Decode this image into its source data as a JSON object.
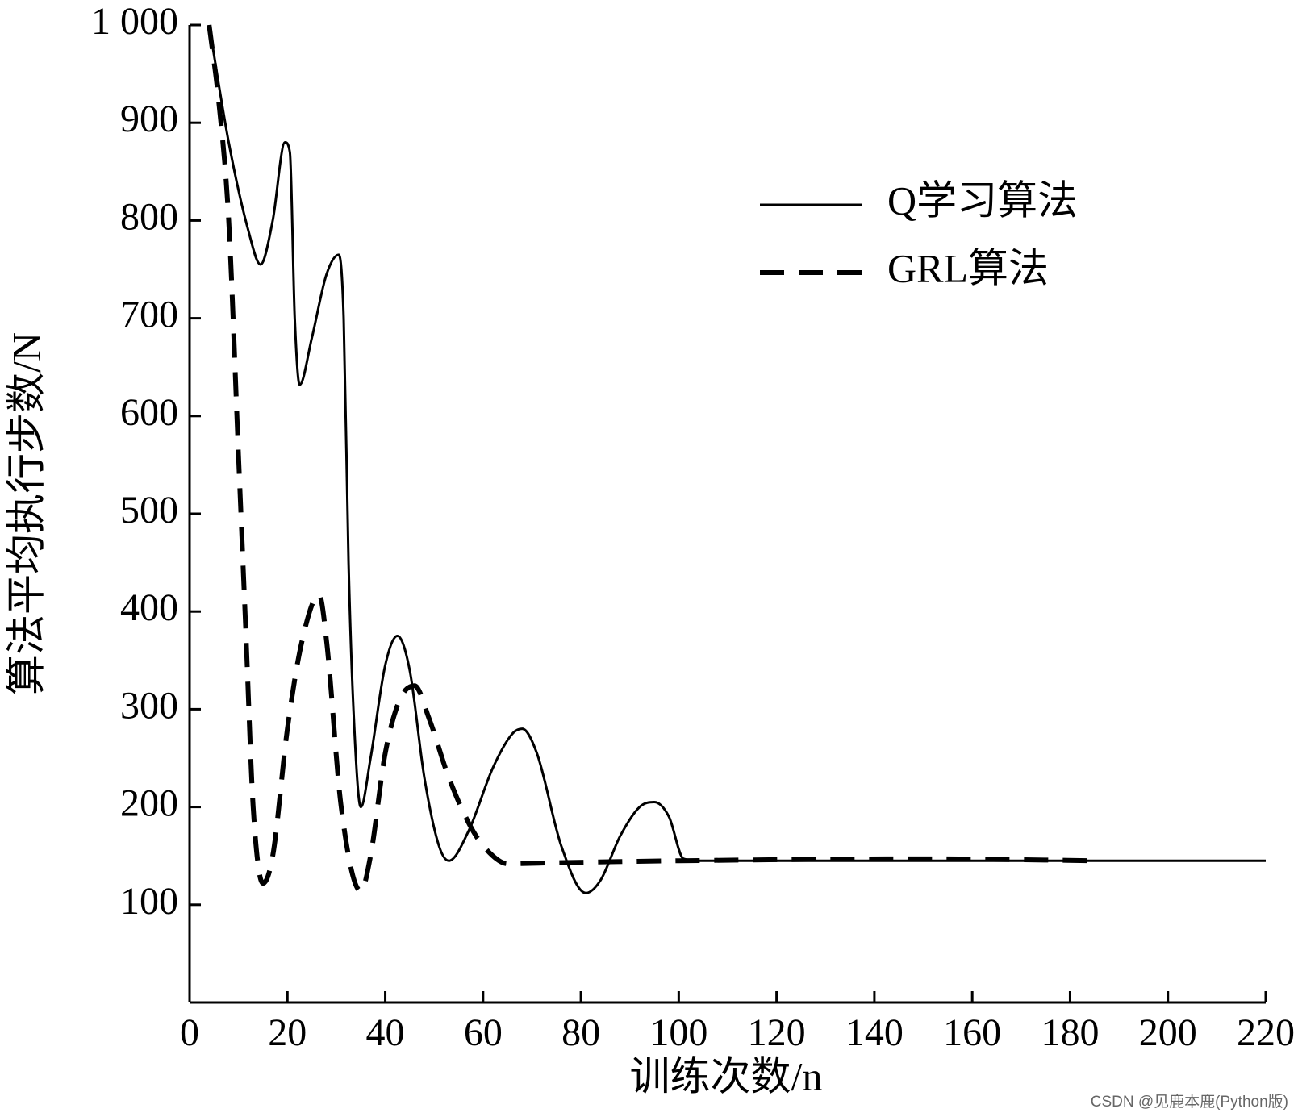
{
  "chart_data": {
    "type": "line",
    "x_label": "训练次数/n",
    "y_label": "算法平均执行步数/N",
    "watermark": "CSDN @见鹿本鹿(Python版)",
    "xlim": [
      0,
      220
    ],
    "xticks": [
      0,
      20,
      40,
      60,
      80,
      100,
      120,
      140,
      160,
      180,
      200,
      220
    ],
    "ylim": [
      0,
      1000
    ],
    "yticks": [
      100,
      200,
      300,
      400,
      500,
      600,
      700,
      800,
      900,
      {
        "value": 1000,
        "label": "1 000"
      }
    ],
    "legend": "upper right",
    "series": [
      {
        "name": "Q学习算法",
        "color": "#000000",
        "style": "solid",
        "x": [
          4,
          8,
          12,
          14.5,
          17,
          19.5,
          20.5,
          21.5,
          22.5,
          25,
          28,
          30.5,
          31.5,
          32.5,
          33.5,
          35,
          37,
          40,
          42.5,
          45,
          48,
          51,
          53,
          57,
          62,
          66,
          68,
          71,
          76,
          81,
          84,
          88,
          92,
          95,
          98,
          101,
          105,
          220
        ],
        "values": [
          1000,
          880,
          790,
          755,
          800,
          880,
          870,
          700,
          632,
          680,
          745,
          765,
          700,
          450,
          300,
          200,
          250,
          345,
          375,
          340,
          230,
          160,
          145,
          175,
          240,
          275,
          280,
          255,
          160,
          112,
          125,
          170,
          200,
          205,
          190,
          147,
          145,
          145
        ]
      },
      {
        "name": "GRL算法",
        "color": "#000000",
        "style": "dashed",
        "x": [
          4,
          6,
          8,
          10,
          11.5,
          13,
          15,
          17,
          20,
          23,
          26.5,
          28,
          31,
          35,
          37,
          40,
          43,
          46,
          49,
          53,
          58,
          62,
          65,
          75,
          100,
          150,
          186
        ],
        "values": [
          1000,
          920,
          800,
          560,
          380,
          200,
          122,
          150,
          280,
          370,
          417,
          370,
          200,
          114,
          150,
          255,
          310,
          324,
          290,
          230,
          175,
          150,
          142,
          143,
          145,
          147,
          145
        ]
      }
    ]
  }
}
